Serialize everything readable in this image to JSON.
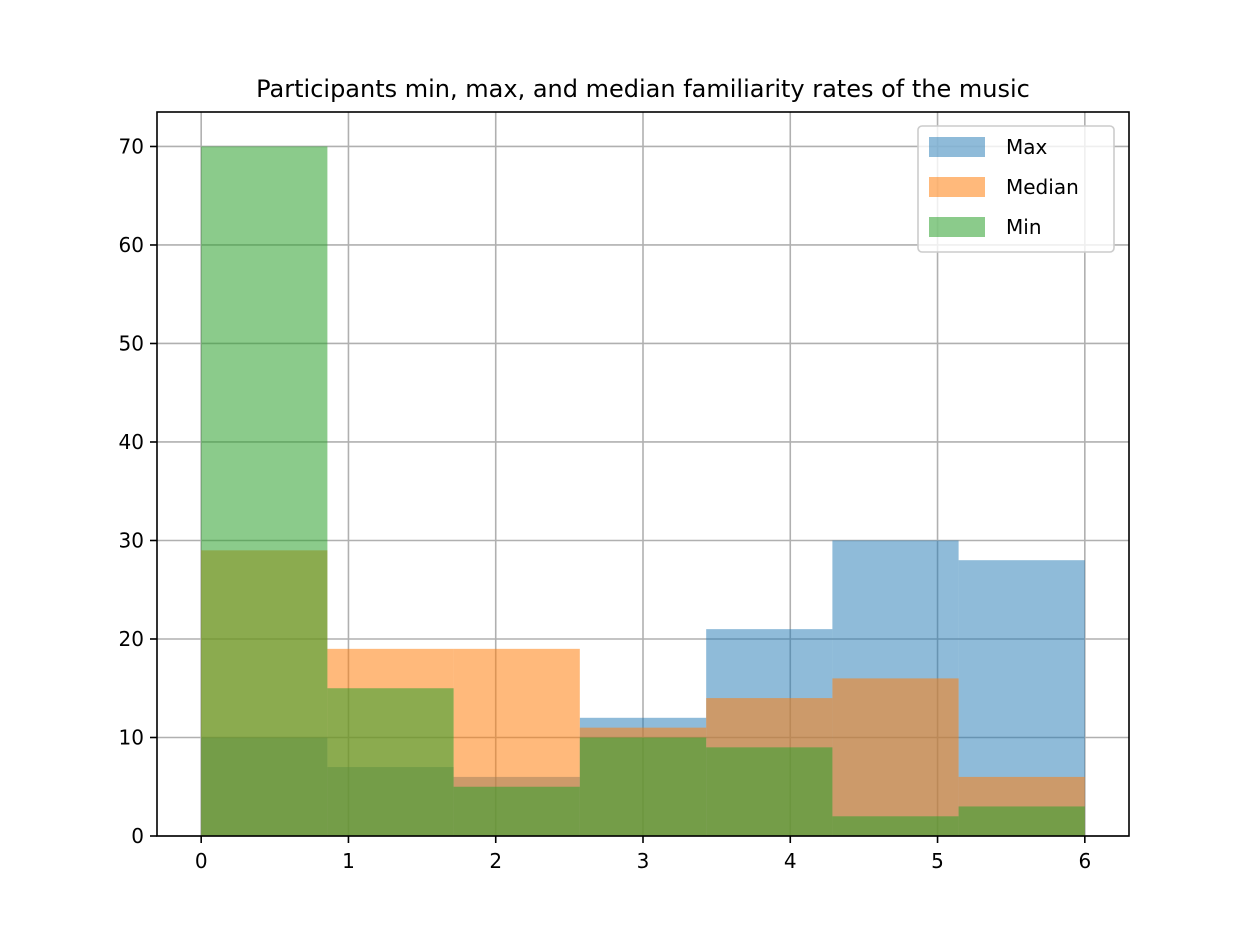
{
  "chart_data": {
    "type": "bar",
    "title": "Participants min, max, and median familiarity rates of the music",
    "xlabel": "",
    "ylabel": "",
    "xlim": [
      -0.3,
      6.3
    ],
    "ylim": [
      0,
      73.5
    ],
    "x_ticks": [
      0,
      1,
      2,
      3,
      4,
      5,
      6
    ],
    "y_ticks": [
      0,
      10,
      20,
      30,
      40,
      50,
      60,
      70
    ],
    "grid": true,
    "legend_position": "top-right",
    "bin_edges": [
      0,
      0.857,
      1.714,
      2.571,
      3.429,
      4.286,
      5.143,
      6
    ],
    "series": [
      {
        "name": "Max",
        "color": "#1f77b4",
        "alpha": 0.5,
        "values": [
          10,
          7,
          6,
          12,
          21,
          30,
          28
        ]
      },
      {
        "name": "Median",
        "color": "#ff7f0e",
        "alpha": 0.55,
        "values": [
          29,
          19,
          19,
          11,
          14,
          16,
          6
        ]
      },
      {
        "name": "Min",
        "color": "#2ca02c",
        "alpha": 0.55,
        "values": [
          70,
          15,
          5,
          10,
          9,
          2,
          3
        ]
      }
    ]
  }
}
